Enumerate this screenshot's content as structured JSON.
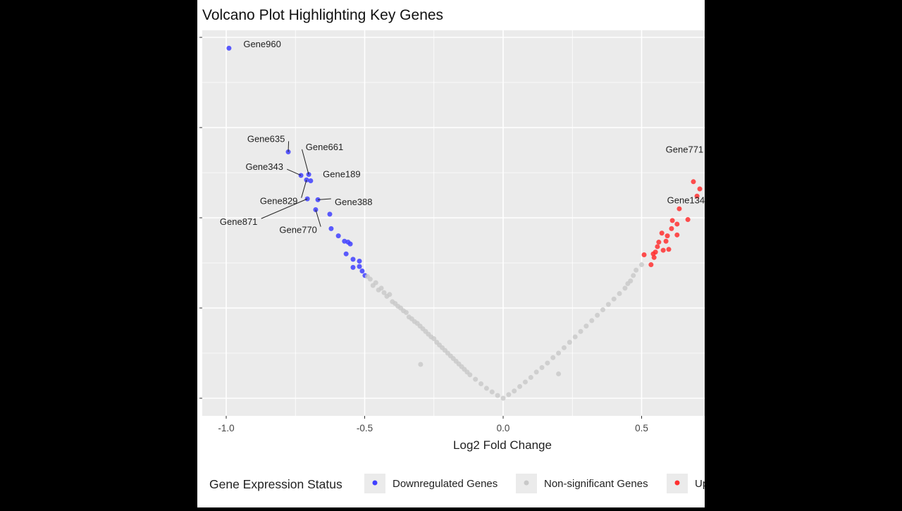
{
  "chart_data": {
    "type": "scatter",
    "title": "Volcano Plot Highlighting Key Genes",
    "xlabel": "Log2 Fold Change",
    "ylabel": "",
    "xlim": [
      -1.09,
      0.73
    ],
    "ylim": [
      -0.19,
      4.07
    ],
    "x_ticks": [
      -1.0,
      -0.5,
      0.0,
      0.5
    ],
    "x_tick_labels": [
      "-1.0",
      "-0.5",
      "0.0",
      "0.5"
    ],
    "y_ticks": [
      0,
      1,
      2,
      3,
      4
    ],
    "grid": true,
    "legend": {
      "title": "Gene Expression Status",
      "placement": "bottom",
      "entries": [
        {
          "label": "Downregulated Genes",
          "color": "#4040ff"
        },
        {
          "label": "Non-significant Genes",
          "color": "#c8c8c8"
        },
        {
          "label": "Upregulated Genes",
          "color": "#ff3030"
        }
      ]
    },
    "series": [
      {
        "name": "Downregulated Genes",
        "color": "#4040ff",
        "points": [
          [
            -0.99,
            3.88
          ],
          [
            -0.776,
            2.73
          ],
          [
            -0.73,
            2.47
          ],
          [
            -0.702,
            2.48
          ],
          [
            -0.695,
            2.41
          ],
          [
            -0.71,
            2.42
          ],
          [
            -0.669,
            2.2
          ],
          [
            -0.707,
            2.21
          ],
          [
            -0.677,
            2.09
          ],
          [
            -0.626,
            2.04
          ],
          [
            -0.621,
            1.88
          ],
          [
            -0.595,
            1.8
          ],
          [
            -0.573,
            1.74
          ],
          [
            -0.56,
            1.73
          ],
          [
            -0.552,
            1.71
          ],
          [
            -0.567,
            1.6
          ],
          [
            -0.542,
            1.54
          ],
          [
            -0.519,
            1.52
          ],
          [
            -0.542,
            1.45
          ],
          [
            -0.519,
            1.46
          ],
          [
            -0.509,
            1.41
          ],
          [
            -0.499,
            1.36
          ]
        ]
      },
      {
        "name": "Non-significant Genes",
        "color": "#c8c8c8",
        "points": [
          [
            -0.49,
            1.35
          ],
          [
            -0.48,
            1.32
          ],
          [
            -0.47,
            1.25
          ],
          [
            -0.46,
            1.28
          ],
          [
            -0.45,
            1.2
          ],
          [
            -0.44,
            1.22
          ],
          [
            -0.43,
            1.17
          ],
          [
            -0.42,
            1.13
          ],
          [
            -0.41,
            1.15
          ],
          [
            -0.4,
            1.07
          ],
          [
            -0.39,
            1.05
          ],
          [
            -0.38,
            1.02
          ],
          [
            -0.37,
            1.0
          ],
          [
            -0.36,
            0.97
          ],
          [
            -0.35,
            0.95
          ],
          [
            -0.34,
            0.9
          ],
          [
            -0.33,
            0.88
          ],
          [
            -0.32,
            0.85
          ],
          [
            -0.31,
            0.83
          ],
          [
            -0.3,
            0.8
          ],
          [
            -0.298,
            0.375
          ],
          [
            -0.29,
            0.77
          ],
          [
            -0.28,
            0.74
          ],
          [
            -0.27,
            0.71
          ],
          [
            -0.26,
            0.68
          ],
          [
            -0.25,
            0.66
          ],
          [
            -0.24,
            0.62
          ],
          [
            -0.23,
            0.59
          ],
          [
            -0.22,
            0.56
          ],
          [
            -0.21,
            0.53
          ],
          [
            -0.2,
            0.5
          ],
          [
            -0.19,
            0.47
          ],
          [
            -0.18,
            0.44
          ],
          [
            -0.17,
            0.41
          ],
          [
            -0.16,
            0.38
          ],
          [
            -0.15,
            0.35
          ],
          [
            -0.14,
            0.32
          ],
          [
            -0.13,
            0.29
          ],
          [
            -0.12,
            0.26
          ],
          [
            -0.1,
            0.21
          ],
          [
            -0.08,
            0.16
          ],
          [
            -0.06,
            0.11
          ],
          [
            -0.04,
            0.07
          ],
          [
            -0.02,
            0.03
          ],
          [
            0.0,
            0.0
          ],
          [
            0.02,
            0.04
          ],
          [
            0.04,
            0.08
          ],
          [
            0.06,
            0.13
          ],
          [
            0.08,
            0.18
          ],
          [
            0.1,
            0.23
          ],
          [
            0.12,
            0.29
          ],
          [
            0.14,
            0.34
          ],
          [
            0.16,
            0.39
          ],
          [
            0.18,
            0.45
          ],
          [
            0.2,
            0.27
          ],
          [
            0.2,
            0.5
          ],
          [
            0.22,
            0.56
          ],
          [
            0.24,
            0.62
          ],
          [
            0.26,
            0.68
          ],
          [
            0.28,
            0.74
          ],
          [
            0.3,
            0.8
          ],
          [
            0.32,
            0.86
          ],
          [
            0.34,
            0.92
          ],
          [
            0.36,
            0.98
          ],
          [
            0.38,
            1.04
          ],
          [
            0.4,
            1.1
          ],
          [
            0.42,
            1.16
          ],
          [
            0.44,
            1.22
          ],
          [
            0.45,
            1.27
          ],
          [
            0.46,
            1.3
          ],
          [
            0.47,
            1.36
          ],
          [
            0.48,
            1.42
          ],
          [
            0.5,
            1.48
          ]
        ]
      },
      {
        "name": "Upregulated Genes",
        "color": "#ff3030",
        "points": [
          [
            0.687,
            2.4
          ],
          [
            0.71,
            2.32
          ],
          [
            0.7,
            2.24
          ],
          [
            0.636,
            2.1
          ],
          [
            0.667,
            1.98
          ],
          [
            0.611,
            1.97
          ],
          [
            0.628,
            1.93
          ],
          [
            0.608,
            1.88
          ],
          [
            0.573,
            1.83
          ],
          [
            0.593,
            1.8
          ],
          [
            0.628,
            1.81
          ],
          [
            0.562,
            1.73
          ],
          [
            0.588,
            1.74
          ],
          [
            0.557,
            1.68
          ],
          [
            0.578,
            1.64
          ],
          [
            0.598,
            1.65
          ],
          [
            0.509,
            1.59
          ],
          [
            0.542,
            1.6
          ],
          [
            0.55,
            1.62
          ],
          [
            0.545,
            1.56
          ],
          [
            0.534,
            1.48
          ],
          [
            0.74,
            2.63
          ],
          [
            0.75,
            2.25
          ]
        ]
      }
    ],
    "annotations": [
      {
        "label": "Gene960",
        "point": [
          -0.99,
          3.88
        ],
        "text_at": [
          -0.87,
          3.93
        ],
        "line": false
      },
      {
        "label": "Gene635",
        "point": [
          -0.776,
          2.73
        ],
        "text_at": [
          -0.856,
          2.88
        ],
        "line": true
      },
      {
        "label": "Gene661",
        "point": [
          -0.702,
          2.48
        ],
        "text_at": [
          -0.645,
          2.79
        ],
        "line": true
      },
      {
        "label": "Gene343",
        "point": [
          -0.73,
          2.47
        ],
        "text_at": [
          -0.862,
          2.57
        ],
        "line": true
      },
      {
        "label": "Gene189",
        "point": [
          -0.695,
          2.41
        ],
        "text_at": [
          -0.583,
          2.49
        ],
        "line": false
      },
      {
        "label": "Gene829",
        "point": [
          -0.71,
          2.42
        ],
        "text_at": [
          -0.81,
          2.19
        ],
        "line": true
      },
      {
        "label": "Gene388",
        "point": [
          -0.669,
          2.2
        ],
        "text_at": [
          -0.54,
          2.18
        ],
        "line": true
      },
      {
        "label": "Gene871",
        "point": [
          -0.707,
          2.21
        ],
        "text_at": [
          -0.955,
          1.96
        ],
        "line": true
      },
      {
        "label": "Gene770",
        "point": [
          -0.677,
          2.09
        ],
        "text_at": [
          -0.74,
          1.87
        ],
        "line": true
      },
      {
        "label": "Gene771",
        "point": [
          0.74,
          2.63
        ],
        "text_at": [
          0.655,
          2.76
        ],
        "line": true
      },
      {
        "label": "Gene134",
        "point": [
          0.75,
          2.25
        ],
        "text_at": [
          0.66,
          2.2
        ],
        "line": true
      }
    ]
  }
}
